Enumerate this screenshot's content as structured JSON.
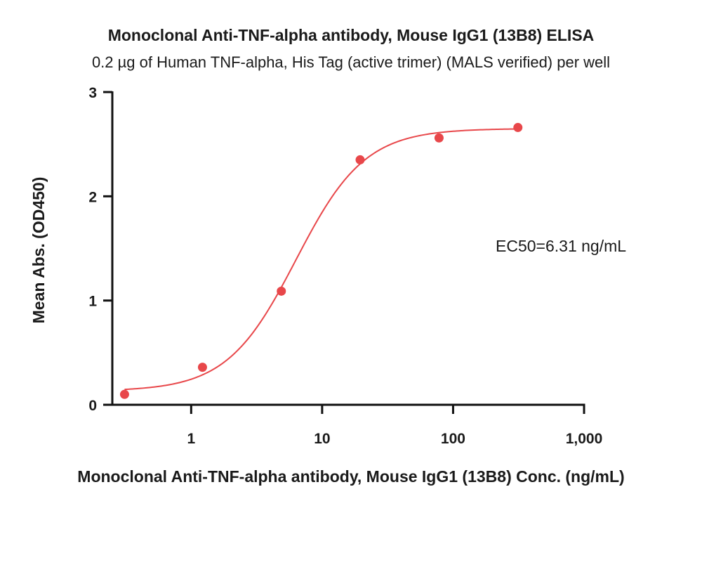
{
  "chart_data": {
    "type": "scatter",
    "title": "Monoclonal Anti-TNF-alpha antibody, Mouse IgG1 (13B8) ELISA",
    "subtitle": "0.2 µg of Human TNF-alpha, His Tag (active trimer) (MALS verified) per well",
    "xlabel": "Monoclonal Anti-TNF-alpha antibody, Mouse IgG1 (13B8) Conc. (ng/mL)",
    "ylabel": "Mean Abs. (OD450)",
    "x_scale": "log",
    "xlim": [
      0.25,
      1000
    ],
    "ylim": [
      0,
      3
    ],
    "x_ticks": [
      1,
      10,
      100,
      1000
    ],
    "x_tick_labels": [
      "1",
      "10",
      "100",
      "1,000"
    ],
    "y_ticks": [
      0,
      1,
      2,
      3
    ],
    "y_tick_labels": [
      "0",
      "1",
      "2",
      "3"
    ],
    "grid": false,
    "annotation": "EC50=6.31 ng/mL",
    "series": [
      {
        "marker_color": "#e8474a",
        "line_color": "#e8474a",
        "points": [
          {
            "x": 0.31,
            "y": 0.1
          },
          {
            "x": 1.22,
            "y": 0.36
          },
          {
            "x": 4.88,
            "y": 1.09
          },
          {
            "x": 19.5,
            "y": 2.35
          },
          {
            "x": 78.1,
            "y": 2.56
          },
          {
            "x": 312.5,
            "y": 2.66
          }
        ],
        "fit": {
          "model": "4PL",
          "bottom": 0.13,
          "top": 2.65,
          "ec50": 6.31,
          "hill": 1.65
        }
      }
    ]
  }
}
